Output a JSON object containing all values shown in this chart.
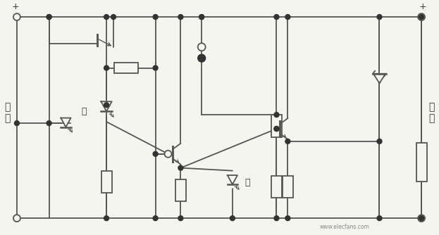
{
  "bg_color": "#f5f5f0",
  "line_color": "#555555",
  "dot_color": "#333333",
  "text_color": "#333333",
  "figsize": [
    6.23,
    3.34
  ],
  "dpi": 100,
  "watermark": "www.elecfans.com",
  "label_out_1": "输",
  "label_out_2": "出",
  "label_in_1": "输",
  "label_in_2": "入",
  "label_green": "绿",
  "label_red": "红",
  "plus": "+"
}
